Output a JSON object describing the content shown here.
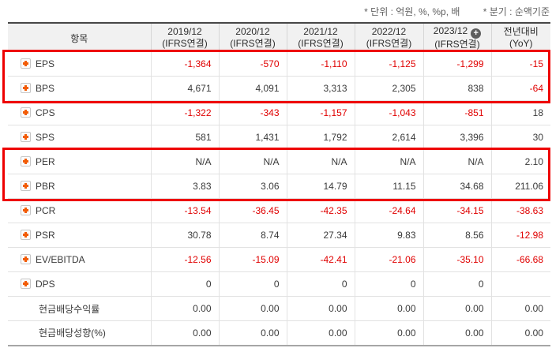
{
  "notes": {
    "unit": "* 단위 : 억원, %, %p, 배",
    "basis": "* 분기 : 순액기준"
  },
  "table": {
    "item_header": "항목",
    "columns": [
      {
        "period": "2019/12",
        "sub": "(IFRS연결)",
        "plus_badge": false
      },
      {
        "period": "2020/12",
        "sub": "(IFRS연결)",
        "plus_badge": false
      },
      {
        "period": "2021/12",
        "sub": "(IFRS연결)",
        "plus_badge": false
      },
      {
        "period": "2022/12",
        "sub": "(IFRS연결)",
        "plus_badge": false
      },
      {
        "period": "2023/12",
        "sub": "(IFRS연결)",
        "plus_badge": true
      },
      {
        "period": "전년대비",
        "sub": "(YoY)",
        "plus_badge": false
      }
    ],
    "rows": [
      {
        "label": "EPS",
        "expand_icon": true,
        "values": [
          "-1,364",
          "-570",
          "-1,110",
          "-1,125",
          "-1,299",
          "-15"
        ]
      },
      {
        "label": "BPS",
        "expand_icon": true,
        "values": [
          "4,671",
          "4,091",
          "3,313",
          "2,305",
          "838",
          "-64"
        ]
      },
      {
        "label": "CPS",
        "expand_icon": true,
        "values": [
          "-1,322",
          "-343",
          "-1,157",
          "-1,043",
          "-851",
          "18"
        ]
      },
      {
        "label": "SPS",
        "expand_icon": true,
        "values": [
          "581",
          "1,431",
          "1,792",
          "2,614",
          "3,396",
          "30"
        ]
      },
      {
        "label": "PER",
        "expand_icon": true,
        "values": [
          "N/A",
          "N/A",
          "N/A",
          "N/A",
          "N/A",
          "2.10"
        ]
      },
      {
        "label": "PBR",
        "expand_icon": true,
        "values": [
          "3.83",
          "3.06",
          "14.79",
          "11.15",
          "34.68",
          "211.06"
        ]
      },
      {
        "label": "PCR",
        "expand_icon": true,
        "values": [
          "-13.54",
          "-36.45",
          "-42.35",
          "-24.64",
          "-34.15",
          "-38.63"
        ]
      },
      {
        "label": "PSR",
        "expand_icon": true,
        "values": [
          "30.78",
          "8.74",
          "27.34",
          "9.83",
          "8.56",
          "-12.98"
        ]
      },
      {
        "label": "EV/EBITDA",
        "expand_icon": true,
        "values": [
          "-12.56",
          "-15.09",
          "-42.41",
          "-21.06",
          "-35.10",
          "-66.68"
        ]
      },
      {
        "label": "DPS",
        "expand_icon": true,
        "values": [
          "0",
          "0",
          "0",
          "0",
          "0",
          ""
        ]
      },
      {
        "label": "현금배당수익률",
        "expand_icon": false,
        "values": [
          "0.00",
          "0.00",
          "0.00",
          "0.00",
          "0.00",
          "0.00"
        ]
      },
      {
        "label": "현금배당성향(%)",
        "expand_icon": false,
        "values": [
          "0.00",
          "0.00",
          "0.00",
          "0.00",
          "0.00",
          "0.00"
        ]
      }
    ],
    "highlights": [
      {
        "rows": [
          "EPS",
          "BPS"
        ]
      },
      {
        "rows": [
          "PER",
          "PBR"
        ]
      }
    ],
    "header_plus_symbol": "+"
  },
  "colors": {
    "negative_value": "#e00000",
    "highlight_border": "#ee0000",
    "expand_icon": "#f25c05",
    "header_bg": "#f1f1f1"
  }
}
